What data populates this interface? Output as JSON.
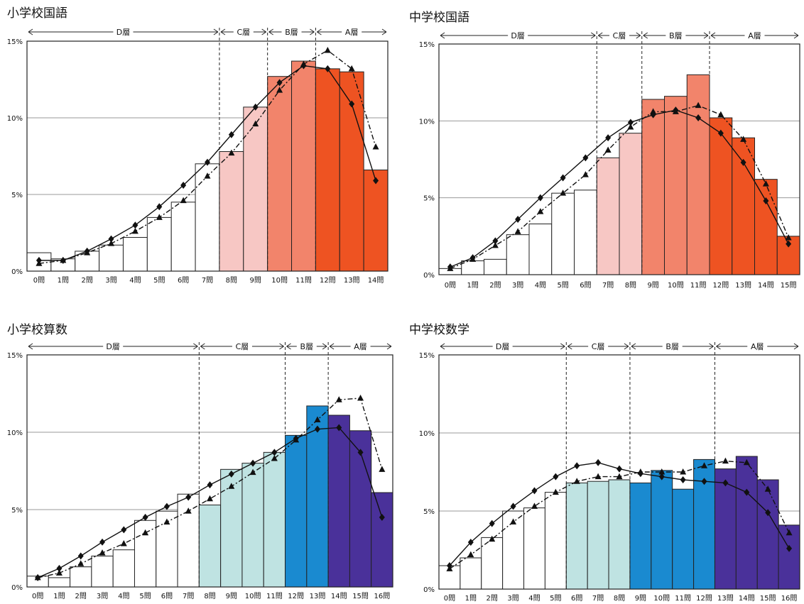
{
  "colors": {
    "D": "#ffffff",
    "C": "#f6c6c4",
    "B": "#f2836a",
    "A": "#ee5322"
  },
  "chart_data": [
    {
      "type": "bar",
      "title": "小学校国語",
      "ylim": [
        0,
        15
      ],
      "ytick_labels": [
        "0%",
        "5%",
        "10%",
        "15%"
      ],
      "categories": [
        "0問",
        "1問",
        "2問",
        "3問",
        "4問",
        "5問",
        "6問",
        "7問",
        "8問",
        "9問",
        "10問",
        "11問",
        "12問",
        "13問",
        "14問"
      ],
      "values": [
        1.2,
        0.8,
        1.3,
        1.7,
        2.2,
        3.5,
        4.5,
        7.0,
        7.8,
        10.7,
        12.7,
        13.7,
        13.2,
        13.0,
        6.6
      ],
      "layers": [
        {
          "label": "D層",
          "from": 0,
          "to": 8,
          "color": "#ffffff"
        },
        {
          "label": "C層",
          "from": 8,
          "to": 10,
          "color": "#f7c7c4"
        },
        {
          "label": "B層",
          "from": 10,
          "to": 12,
          "color": "#f2846b"
        },
        {
          "label": "A層",
          "from": 12,
          "to": 15,
          "color": "#ee5322"
        }
      ],
      "series": [
        {
          "style": "solid-diamond",
          "values": [
            0.7,
            0.7,
            1.3,
            2.1,
            3.0,
            4.2,
            5.6,
            7.1,
            8.9,
            10.7,
            12.3,
            13.4,
            13.2,
            10.9,
            5.9
          ]
        },
        {
          "style": "dashdot-triangle",
          "values": [
            0.5,
            0.7,
            1.2,
            1.8,
            2.6,
            3.5,
            4.6,
            6.2,
            7.7,
            9.6,
            11.8,
            13.5,
            14.4,
            13.2,
            8.1
          ]
        }
      ]
    },
    {
      "type": "bar",
      "title": "中学校国語",
      "ylim": [
        0,
        15
      ],
      "ytick_labels": [
        "0%",
        "5%",
        "10%",
        "15%"
      ],
      "categories": [
        "0問",
        "1問",
        "2問",
        "3問",
        "4問",
        "5問",
        "6問",
        "7問",
        "8問",
        "9問",
        "10問",
        "11問",
        "12問",
        "13問",
        "14問",
        "15問"
      ],
      "values": [
        0.4,
        0.9,
        1.0,
        2.6,
        3.3,
        5.3,
        5.5,
        7.6,
        9.2,
        11.4,
        11.6,
        13.0,
        10.2,
        8.9,
        6.2,
        2.5
      ],
      "layers": [
        {
          "label": "D層",
          "from": 0,
          "to": 7,
          "color": "#ffffff"
        },
        {
          "label": "C層",
          "from": 7,
          "to": 9,
          "color": "#f7c7c4"
        },
        {
          "label": "B層",
          "from": 9,
          "to": 12,
          "color": "#f2846b"
        },
        {
          "label": "A層",
          "from": 12,
          "to": 16,
          "color": "#ee5322"
        }
      ],
      "series": [
        {
          "style": "solid-diamond",
          "values": [
            0.5,
            1.1,
            2.2,
            3.6,
            5.0,
            6.3,
            7.6,
            8.9,
            9.9,
            10.4,
            10.7,
            10.2,
            9.2,
            7.3,
            4.8,
            2.0
          ]
        },
        {
          "style": "dashdot-triangle",
          "values": [
            0.4,
            1.0,
            1.9,
            2.8,
            4.1,
            5.3,
            6.5,
            8.1,
            9.6,
            10.6,
            10.6,
            11.0,
            10.4,
            8.8,
            5.9,
            2.4
          ]
        }
      ]
    },
    {
      "type": "bar",
      "title": "小学校算数",
      "ylim": [
        0,
        15
      ],
      "ytick_labels": [
        "0%",
        "5%",
        "10%",
        "15%"
      ],
      "categories": [
        "0問",
        "1問",
        "2問",
        "3問",
        "4問",
        "5問",
        "6問",
        "7問",
        "8問",
        "9問",
        "10問",
        "11問",
        "12問",
        "13問",
        "14問",
        "15問",
        "16問"
      ],
      "values": [
        0.7,
        0.6,
        1.3,
        2.0,
        2.4,
        4.3,
        4.9,
        6.0,
        5.3,
        7.6,
        8.0,
        8.7,
        9.8,
        11.7,
        11.1,
        10.1,
        6.1
      ],
      "layers": [
        {
          "label": "D層",
          "from": 0,
          "to": 8,
          "color": "#ffffff"
        },
        {
          "label": "C層",
          "from": 8,
          "to": 12,
          "color": "#bfe3e2"
        },
        {
          "label": "B層",
          "from": 12,
          "to": 14,
          "color": "#1a8ad0"
        },
        {
          "label": "A層",
          "from": 14,
          "to": 17,
          "color": "#4a319a"
        }
      ],
      "series": [
        {
          "style": "solid-diamond",
          "values": [
            0.6,
            1.2,
            2.0,
            2.9,
            3.7,
            4.5,
            5.2,
            5.8,
            6.6,
            7.3,
            8.0,
            8.7,
            9.6,
            10.2,
            10.3,
            8.7,
            4.5
          ]
        },
        {
          "style": "dashdot-triangle",
          "values": [
            0.6,
            0.9,
            1.5,
            2.2,
            2.8,
            3.5,
            4.2,
            4.9,
            5.7,
            6.5,
            7.4,
            8.3,
            9.5,
            10.8,
            12.1,
            12.2,
            7.6
          ]
        }
      ]
    },
    {
      "type": "bar",
      "title": "中学校数学",
      "ylim": [
        0,
        15
      ],
      "ytick_labels": [
        "0%",
        "5%",
        "10%",
        "15%"
      ],
      "categories": [
        "0問",
        "1問",
        "2問",
        "3問",
        "4問",
        "5問",
        "6問",
        "7問",
        "8問",
        "9問",
        "10問",
        "11問",
        "12問",
        "13問",
        "14問",
        "15問",
        "16問"
      ],
      "values": [
        1.5,
        2.0,
        3.3,
        5.0,
        5.2,
        6.2,
        6.8,
        6.9,
        7.0,
        6.8,
        7.6,
        6.4,
        8.3,
        7.7,
        8.5,
        7.0,
        4.1
      ],
      "layers": [
        {
          "label": "D層",
          "from": 0,
          "to": 6,
          "color": "#ffffff"
        },
        {
          "label": "C層",
          "from": 6,
          "to": 9,
          "color": "#bfe3e2"
        },
        {
          "label": "B層",
          "from": 9,
          "to": 13,
          "color": "#1a8ad0"
        },
        {
          "label": "A層",
          "from": 13,
          "to": 17,
          "color": "#4a319a"
        }
      ],
      "series": [
        {
          "style": "solid-diamond",
          "values": [
            1.5,
            3.0,
            4.2,
            5.3,
            6.3,
            7.2,
            7.9,
            8.1,
            7.7,
            7.4,
            7.2,
            7.0,
            6.9,
            6.8,
            6.2,
            4.9,
            2.6
          ]
        },
        {
          "style": "dashdot-triangle",
          "values": [
            1.3,
            2.2,
            3.2,
            4.3,
            5.3,
            6.2,
            6.9,
            7.2,
            7.2,
            7.5,
            7.5,
            7.5,
            7.9,
            8.2,
            8.1,
            6.4,
            3.6
          ]
        }
      ]
    }
  ]
}
